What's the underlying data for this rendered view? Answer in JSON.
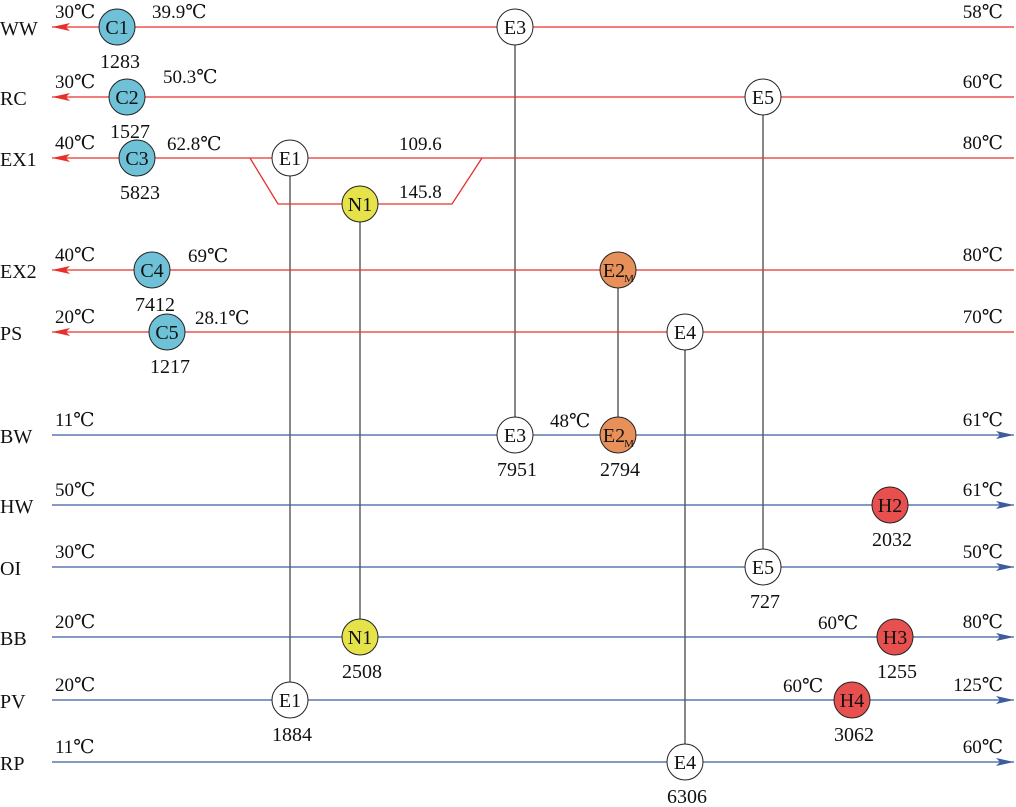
{
  "streams": [
    {
      "name": "WW",
      "kind": "hot",
      "left_temp": "30℃",
      "right_temp": "58℃"
    },
    {
      "name": "RC",
      "kind": "hot",
      "left_temp": "30℃",
      "right_temp": "60℃"
    },
    {
      "name": "EX1",
      "kind": "hot",
      "left_temp": "40℃",
      "right_temp": "80℃"
    },
    {
      "name": "EX2",
      "kind": "hot",
      "left_temp": "40℃",
      "right_temp": "80℃"
    },
    {
      "name": "PS",
      "kind": "hot",
      "left_temp": "20℃",
      "right_temp": "70℃"
    },
    {
      "name": "BW",
      "kind": "cold",
      "left_temp": "11℃",
      "right_temp": "61℃"
    },
    {
      "name": "HW",
      "kind": "cold",
      "left_temp": "50℃",
      "right_temp": "61℃"
    },
    {
      "name": "OI",
      "kind": "cold",
      "left_temp": "30℃",
      "right_temp": "50℃"
    },
    {
      "name": "BB",
      "kind": "cold",
      "left_temp": "20℃",
      "right_temp": "80℃"
    },
    {
      "name": "PV",
      "kind": "cold",
      "left_temp": "20℃",
      "right_temp": "125℃"
    },
    {
      "name": "RP",
      "kind": "cold",
      "left_temp": "11℃",
      "right_temp": "60℃"
    }
  ],
  "mid_temps": [
    "39.9℃",
    "50.3℃",
    "62.8℃",
    "109.6",
    "145.8",
    "69℃",
    "28.1℃",
    "48℃",
    "60℃",
    "60℃"
  ],
  "units": [
    {
      "label": "C1",
      "duty": "1283",
      "type": "cooler"
    },
    {
      "label": "C2",
      "duty": "1527",
      "type": "cooler"
    },
    {
      "label": "C3",
      "duty": "5823",
      "type": "cooler"
    },
    {
      "label": "C4",
      "duty": "7412",
      "type": "cooler"
    },
    {
      "label": "C5",
      "duty": "1217",
      "type": "cooler"
    },
    {
      "label": "E3",
      "duty": "7951",
      "type": "exchanger"
    },
    {
      "label": "E5",
      "duty": "727",
      "type": "exchanger"
    },
    {
      "label": "E1",
      "duty": "1884",
      "type": "exchanger"
    },
    {
      "label": "N1",
      "duty": "2508",
      "type": "new"
    },
    {
      "label": "E2",
      "sub": "M",
      "duty": "2794",
      "type": "modified"
    },
    {
      "label": "E4",
      "duty": "6306",
      "type": "exchanger"
    },
    {
      "label": "H2",
      "duty": "2032",
      "type": "heater"
    },
    {
      "label": "H3",
      "duty": "1255",
      "type": "heater"
    },
    {
      "label": "H4",
      "duty": "3062",
      "type": "heater"
    }
  ],
  "colors": {
    "hot_line": "#e8302a",
    "cold_line": "#3b5d9e",
    "link": "#555555",
    "cooler": "#6ec1d6",
    "heater": "#e85050",
    "new": "#e6e24a",
    "modified": "#e8905a",
    "exchanger": "#ffffff"
  }
}
